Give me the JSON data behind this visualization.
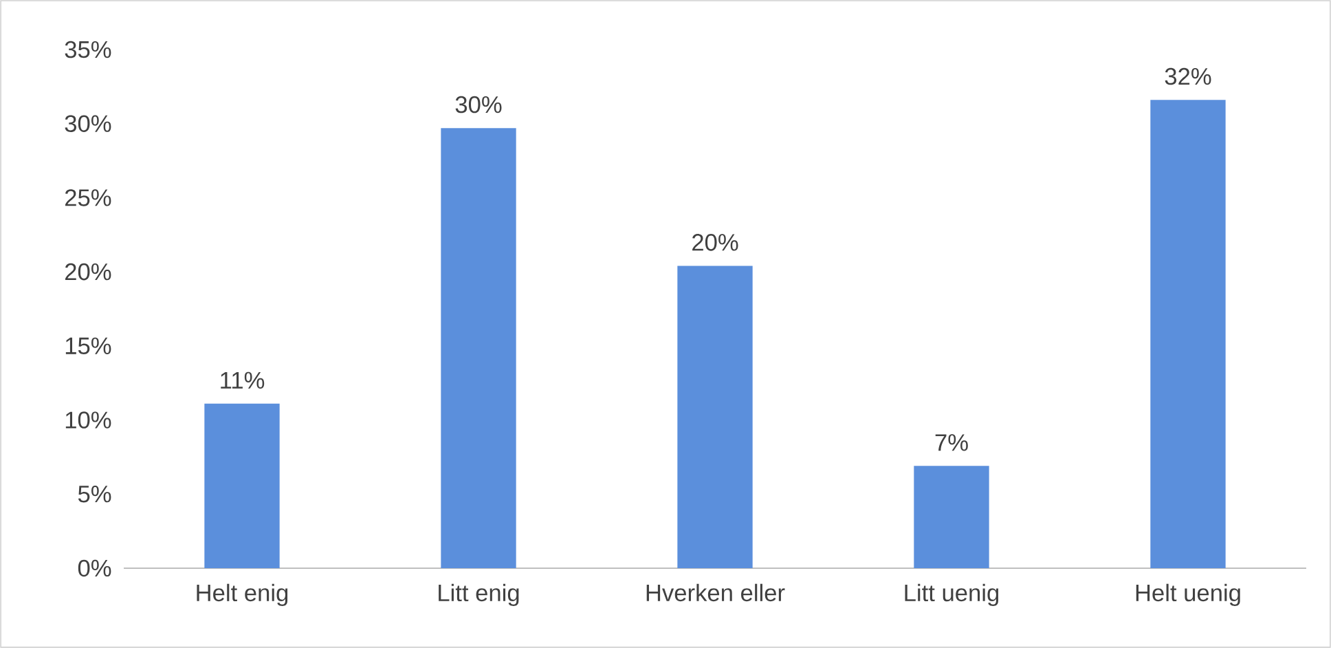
{
  "chart_data": {
    "type": "bar",
    "categories": [
      "Helt enig",
      "Litt enig",
      "Hverken eller",
      "Litt uenig",
      "Helt uenig"
    ],
    "values": [
      11.1,
      29.7,
      20.4,
      6.9,
      31.6
    ],
    "value_labels": [
      "11%",
      "30%",
      "20%",
      "7%",
      "32%"
    ],
    "color": "#5b8fdc",
    "ylim": [
      0,
      35
    ],
    "yticks": [
      {
        "value": 0,
        "label": "0%"
      },
      {
        "value": 5,
        "label": "5%"
      },
      {
        "value": 10,
        "label": "10%"
      },
      {
        "value": 15,
        "label": "15%"
      },
      {
        "value": 20,
        "label": "20%"
      },
      {
        "value": 25,
        "label": "25%"
      },
      {
        "value": 30,
        "label": "30%"
      },
      {
        "value": 35,
        "label": "35%"
      }
    ],
    "grid": false
  }
}
